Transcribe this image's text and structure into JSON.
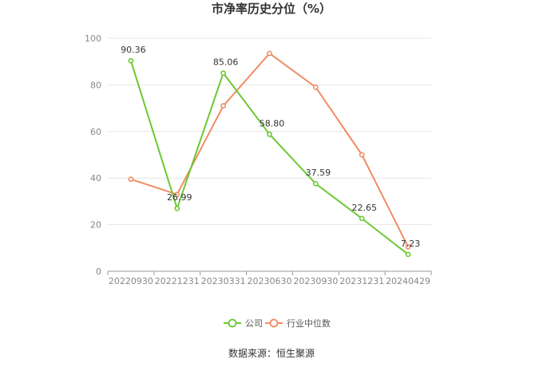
{
  "chart_data": {
    "type": "line",
    "title": "市净率历史分位（%）",
    "categories": [
      "20220930",
      "20221231",
      "20230331",
      "20230630",
      "20230930",
      "20231231",
      "20240429"
    ],
    "ylim": [
      0,
      100
    ],
    "yticks": [
      0,
      20,
      40,
      60,
      80,
      100
    ],
    "grid": true,
    "legend_position": "bottom",
    "series": [
      {
        "name": "公司",
        "color": "#6cc832",
        "values": [
          90.36,
          26.99,
          85.06,
          58.8,
          37.59,
          22.65,
          7.23
        ],
        "labels": [
          "90.36",
          "26.99",
          "85.06",
          "58.80",
          "37.59",
          "22.65",
          "7.23"
        ]
      },
      {
        "name": "行业中位数",
        "color": "#f08c64",
        "values": [
          39.5,
          33.0,
          71.0,
          93.5,
          79.0,
          50.0,
          10.5
        ]
      }
    ]
  },
  "source": "数据来源：恒生聚源"
}
